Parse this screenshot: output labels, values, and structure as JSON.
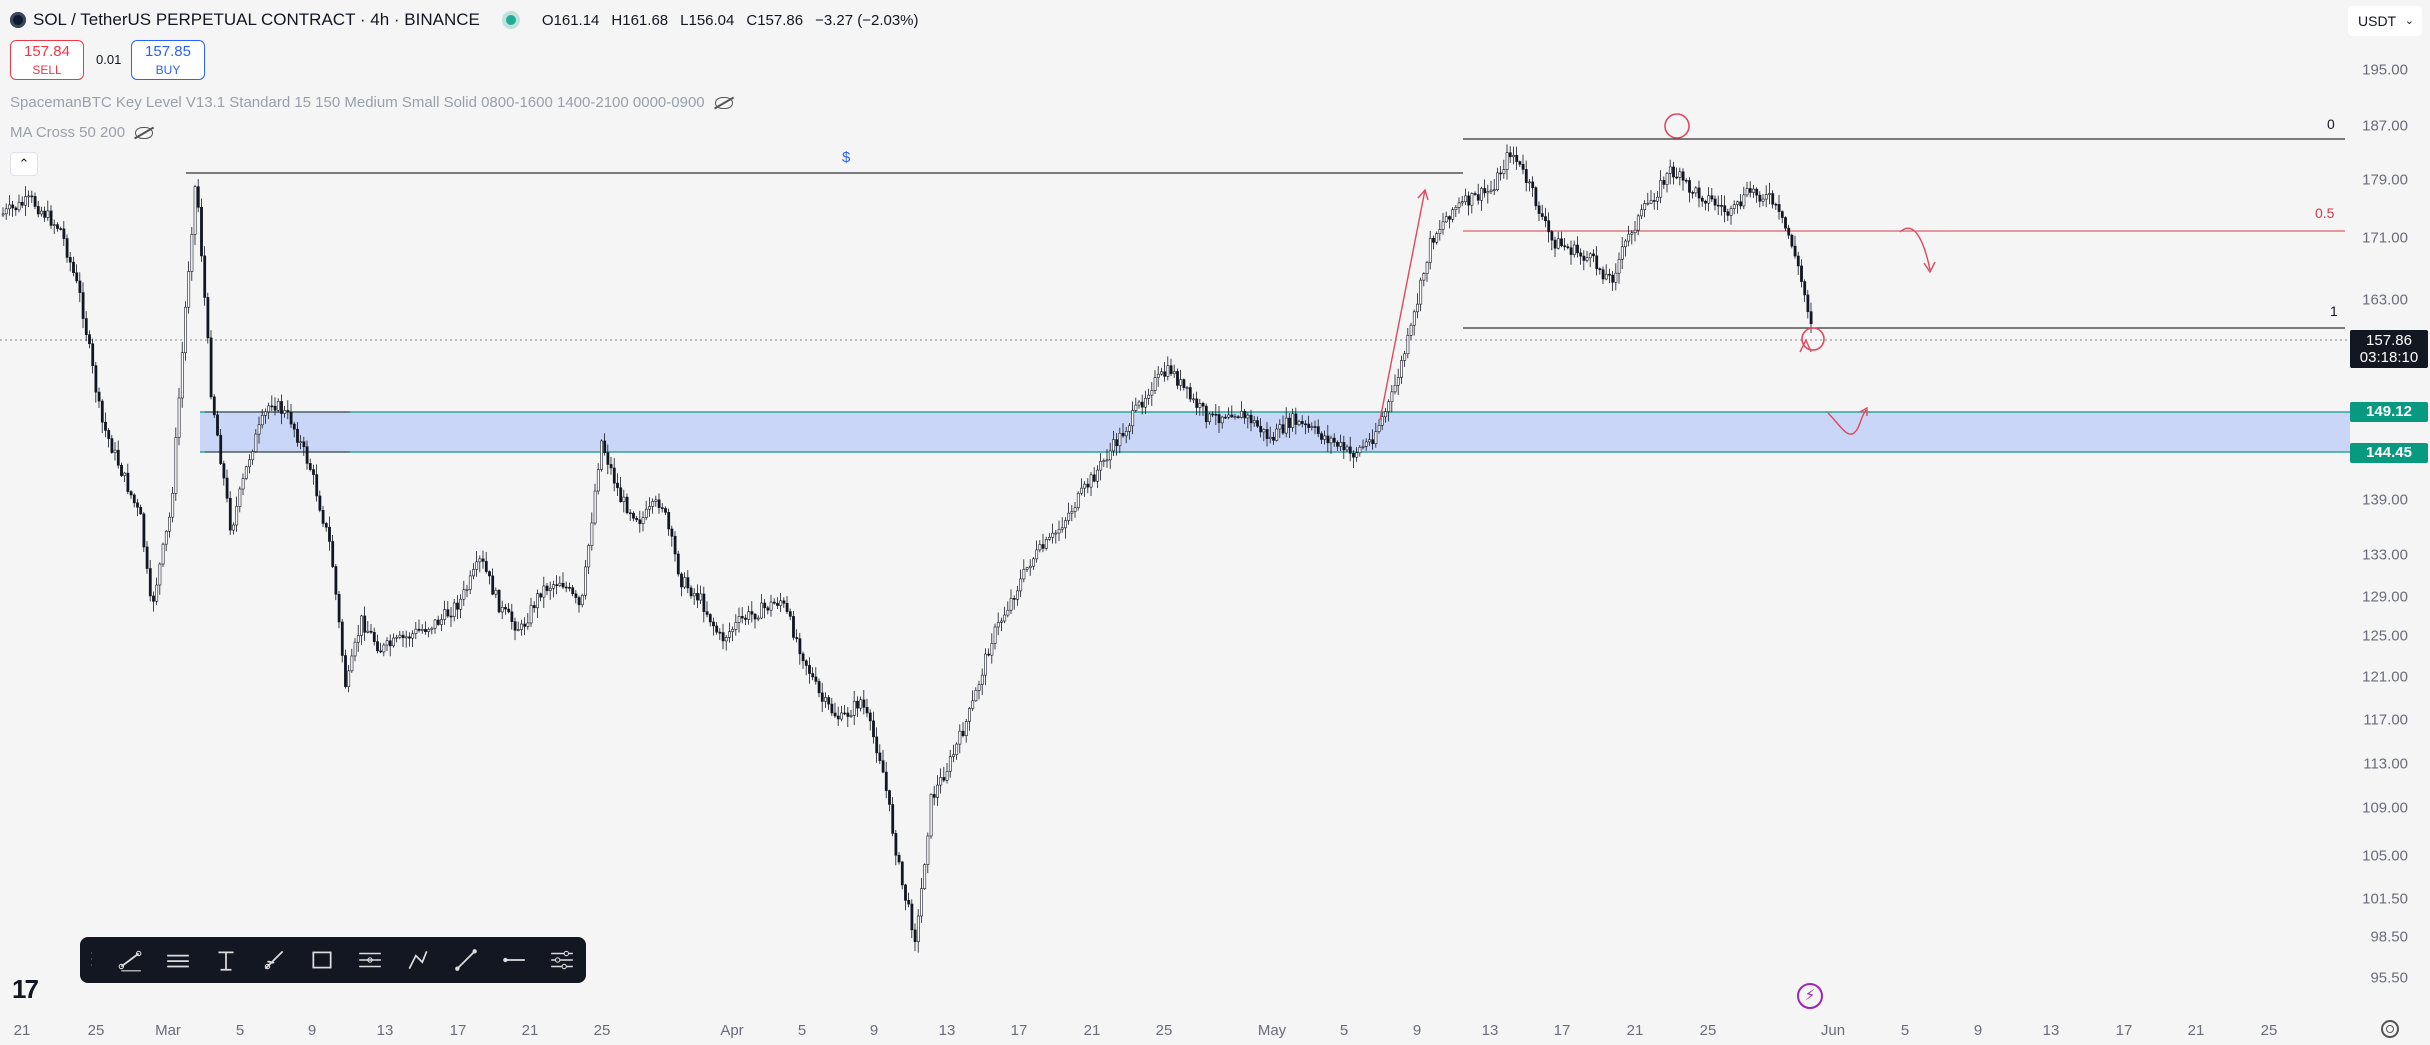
{
  "legend": {
    "symbol": "SOL / TetherUS PERPETUAL CONTRACT · 4h · BINANCE",
    "o_key": "O",
    "o_val": "161.14",
    "h_key": "H",
    "h_val": "161.68",
    "l_key": "L",
    "l_val": "156.04",
    "c_key": "C",
    "c_val": "157.86",
    "change": "−3.27 (−2.03%)"
  },
  "trade": {
    "sell_price": "157.84",
    "sell_label": "SELL",
    "spread": "0.01",
    "buy_price": "157.85",
    "buy_label": "BUY"
  },
  "indicators": {
    "spaceman": "SpacemanBTC Key Level V13.1 Standard 15 150 Medium Small Solid 0800-1600 1400-2100 0000-0900",
    "ma_cross": "MA Cross 50 200",
    "collapse_symbol": "⌃"
  },
  "axis": {
    "currency": "USDT",
    "y_ticks": [
      "195.00",
      "187.00",
      "179.00",
      "171.00",
      "163.00",
      "139.00",
      "133.00",
      "129.00",
      "125.00",
      "121.00",
      "117.00",
      "113.00",
      "109.00",
      "105.00",
      "101.50",
      "98.50",
      "95.50"
    ],
    "x_ticks": [
      "21",
      "25",
      "Mar",
      "5",
      "9",
      "13",
      "17",
      "21",
      "25",
      "Apr",
      "5",
      "9",
      "13",
      "17",
      "21",
      "25",
      "May",
      "5",
      "9",
      "13",
      "17",
      "21",
      "25",
      "Jun",
      "5",
      "9",
      "13",
      "17",
      "21",
      "25"
    ]
  },
  "price_tags": {
    "current": "157.86",
    "countdown": "03:18:10",
    "zone_top": "149.12",
    "zone_bottom": "144.45"
  },
  "annotations": {
    "fib_0": "0",
    "fib_05": "0.5",
    "fib_1": "1",
    "dollar": "$"
  },
  "colors": {
    "up_candle": "#ffffff",
    "down_candle": "#131722",
    "zone_fill": "#c5d3f7",
    "zone_border": "#089981",
    "annotation_red": "#e0485e",
    "fib_red": "#d13a4a"
  },
  "toolbar": {
    "tools": [
      "trend-line-icon",
      "horizontal-lines-icon",
      "text-icon",
      "brush-icon",
      "rectangle-icon",
      "parallel-lines-icon",
      "path-icon",
      "line-icon",
      "horizontal-ray-icon",
      "settings-lines-icon"
    ]
  },
  "brand": {
    "logo": "17"
  }
}
